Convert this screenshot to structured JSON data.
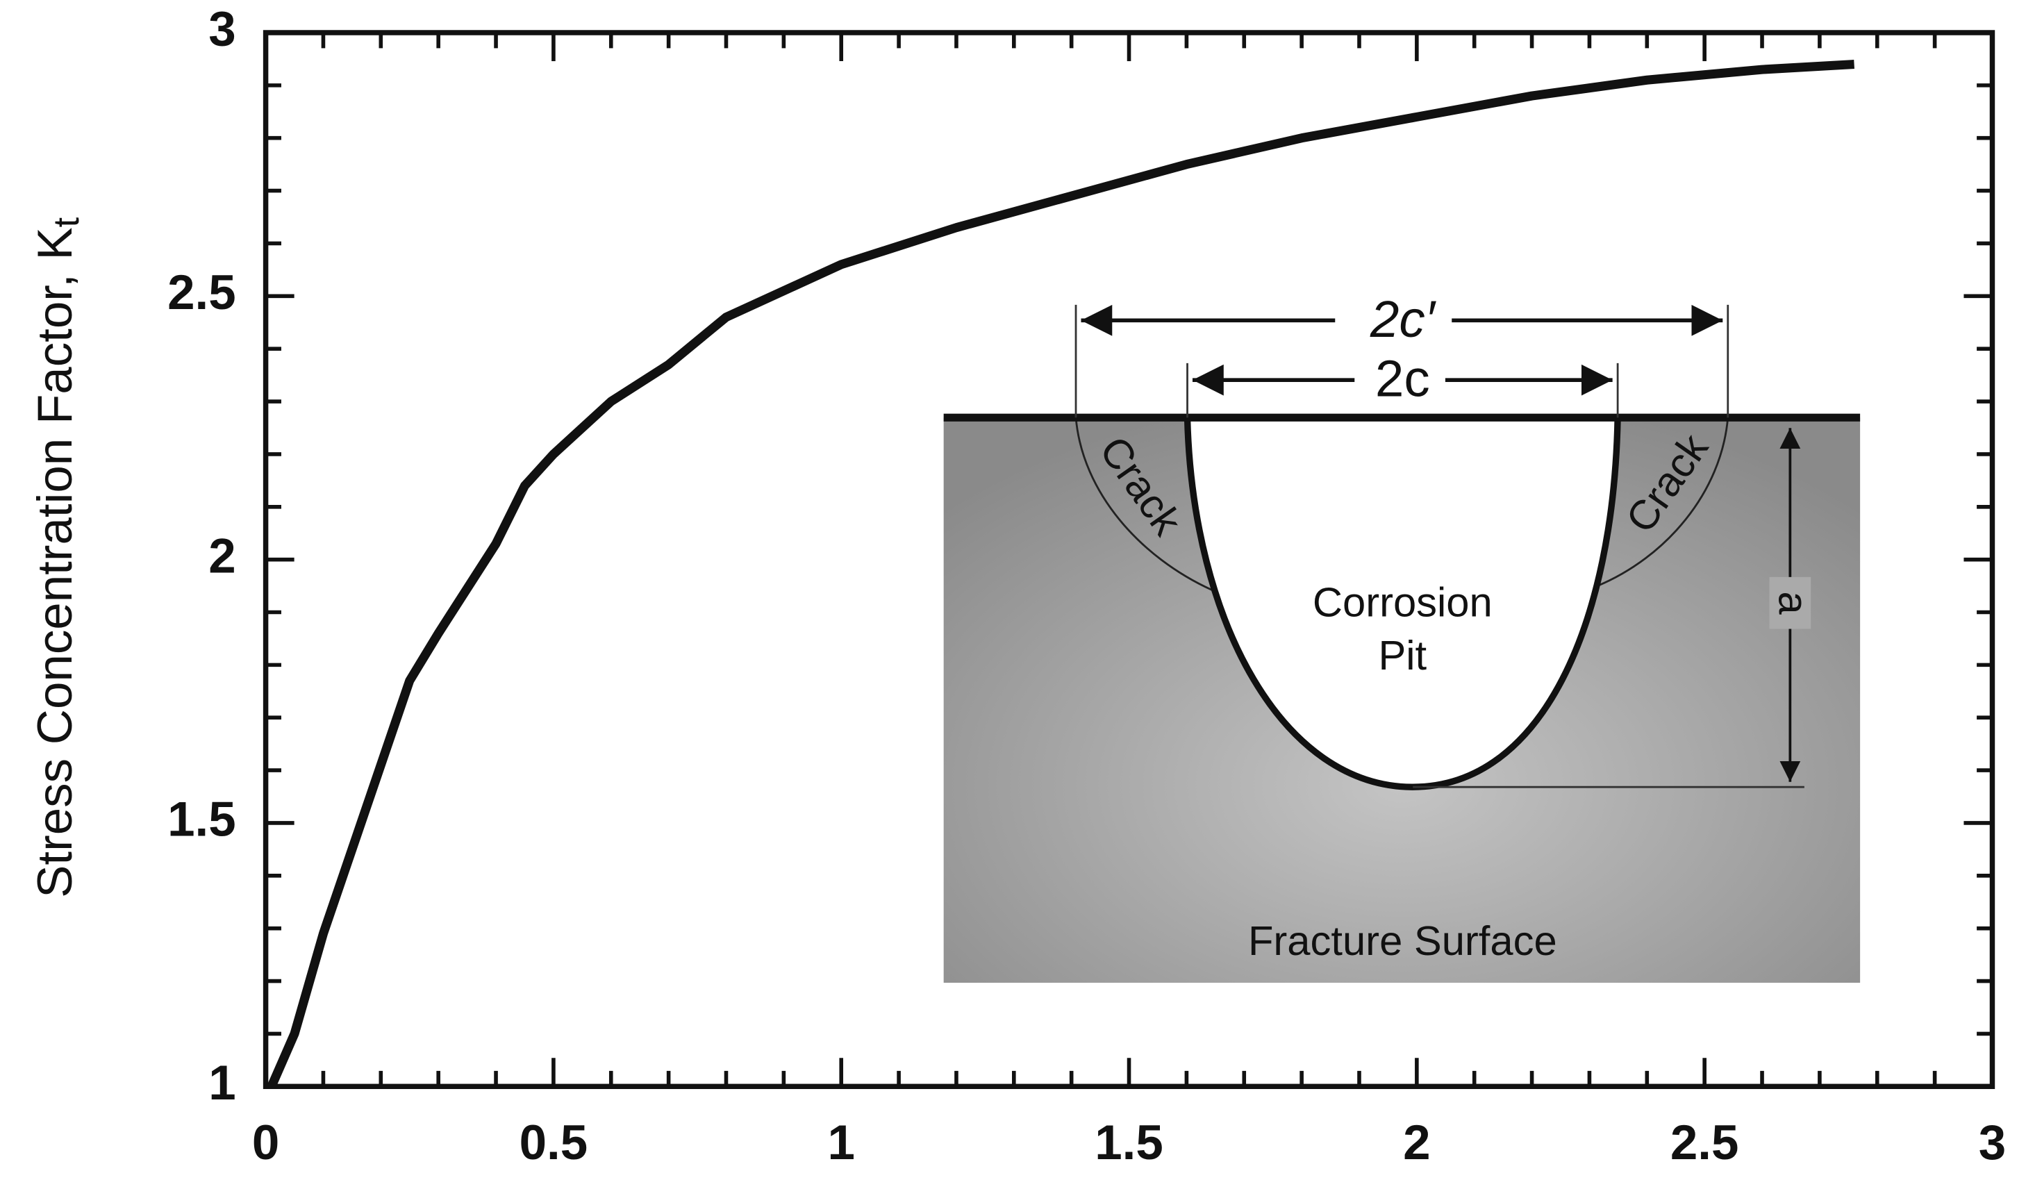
{
  "chart_data": {
    "type": "line",
    "y_label": "Stress Concentration Factor, K",
    "y_label_subscript": "t",
    "x": [
      0.01,
      0.05,
      0.1,
      0.15,
      0.2,
      0.25,
      0.3,
      0.4,
      0.45,
      0.5,
      0.6,
      0.7,
      0.8,
      1.0,
      1.2,
      1.4,
      1.6,
      1.8,
      2.0,
      2.2,
      2.4,
      2.6,
      2.76
    ],
    "values": [
      1.0,
      1.1,
      1.29,
      1.45,
      1.61,
      1.77,
      1.86,
      2.03,
      2.14,
      2.2,
      2.3,
      2.37,
      2.46,
      2.56,
      2.63,
      2.69,
      2.75,
      2.8,
      2.84,
      2.88,
      2.91,
      2.93,
      2.94
    ],
    "color": "#111111",
    "xlim": [
      0,
      3
    ],
    "ylim": [
      1,
      3
    ],
    "xticks": [
      0,
      0.5,
      1,
      1.5,
      2,
      2.5,
      3
    ],
    "yticks": [
      1,
      1.5,
      2,
      2.5,
      3
    ],
    "inset": {
      "outer_width": "2c′",
      "pit_width": "2c",
      "crack_left": "Crack",
      "crack_right": "Crack",
      "pit_line1": "Corrosion",
      "pit_line2": "Pit",
      "depth": "a",
      "surface": "Fracture Surface"
    }
  }
}
